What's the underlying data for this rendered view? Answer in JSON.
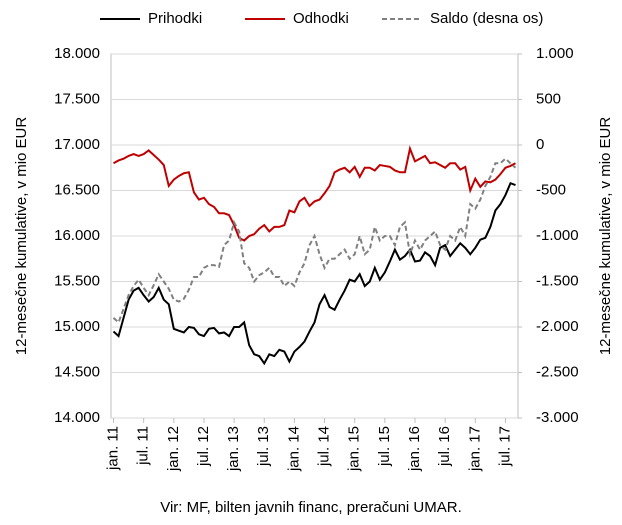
{
  "chart_data": {
    "type": "line",
    "y_label": "12-mesečne kumulative, v mio EUR",
    "y2_label": "12-mesečne kumulative, v mio EUR",
    "source": "Vir: MF, bilten javnih financ, preračuni UMAR.",
    "categories": [
      "jan. 11",
      null,
      null,
      null,
      null,
      null,
      "jul. 11",
      null,
      null,
      null,
      null,
      null,
      "jan. 12",
      null,
      null,
      null,
      null,
      null,
      "jul. 12",
      null,
      null,
      null,
      null,
      null,
      "jan. 13",
      null,
      null,
      null,
      null,
      null,
      "jul. 13",
      null,
      null,
      null,
      null,
      null,
      "jan. 14",
      null,
      null,
      null,
      null,
      null,
      "jul. 14",
      null,
      null,
      null,
      null,
      null,
      "jan. 15",
      null,
      null,
      null,
      null,
      null,
      "jul. 15",
      null,
      null,
      null,
      null,
      null,
      "jan. 16",
      null,
      null,
      null,
      null,
      null,
      "jul. 16",
      null,
      null,
      null,
      null,
      null,
      "jan. 17",
      null,
      null,
      null,
      null,
      null,
      "jul. 17",
      null,
      null
    ],
    "series": [
      {
        "name": "Prihodki",
        "color": "#000000",
        "values": [
          14950,
          14900,
          15100,
          15300,
          15400,
          15430,
          15350,
          15280,
          15330,
          15430,
          15300,
          15250,
          14980,
          14960,
          14940,
          15000,
          14990,
          14920,
          14900,
          14980,
          14990,
          14930,
          14940,
          14900,
          15000,
          15000,
          15050,
          14800,
          14700,
          14680,
          14600,
          14700,
          14680,
          14750,
          14730,
          14620,
          14730,
          14780,
          14840,
          14950,
          15050,
          15250,
          15350,
          15220,
          15190,
          15300,
          15400,
          15520,
          15500,
          15580,
          15450,
          15500,
          15650,
          15520,
          15600,
          15720,
          15850,
          15740,
          15780,
          15850,
          15720,
          15730,
          15820,
          15780,
          15680,
          15870,
          15900,
          15780,
          15850,
          15920,
          15870,
          15800,
          15870,
          15960,
          15980,
          16100,
          16280,
          16350,
          16450,
          16580,
          16560
        ]
      },
      {
        "name": "Odhodki",
        "color": "#c00000",
        "values": [
          16800,
          16830,
          16850,
          16880,
          16900,
          16880,
          16900,
          16940,
          16890,
          16840,
          16780,
          16550,
          16620,
          16660,
          16690,
          16700,
          16480,
          16400,
          16420,
          16350,
          16320,
          16250,
          16250,
          16230,
          16120,
          15980,
          15950,
          16000,
          16020,
          16080,
          16120,
          16050,
          16100,
          16100,
          16120,
          16280,
          16260,
          16380,
          16420,
          16330,
          16380,
          16400,
          16470,
          16550,
          16700,
          16730,
          16750,
          16700,
          16760,
          16650,
          16750,
          16750,
          16720,
          16780,
          16770,
          16760,
          16720,
          16700,
          16700,
          16960,
          16820,
          16850,
          16880,
          16800,
          16810,
          16780,
          16750,
          16800,
          16800,
          16730,
          16760,
          16500,
          16630,
          16540,
          16600,
          16590,
          16620,
          16680,
          16750,
          16770,
          16800
        ]
      },
      {
        "name": "Saldo (desna os)",
        "color": "#808080",
        "dashed": true,
        "axis": "y2",
        "values": [
          -1900,
          -1950,
          -1800,
          -1650,
          -1550,
          -1480,
          -1570,
          -1650,
          -1540,
          -1420,
          -1500,
          -1580,
          -1700,
          -1720,
          -1690,
          -1590,
          -1450,
          -1450,
          -1350,
          -1320,
          -1320,
          -1340,
          -1100,
          -1050,
          -850,
          -950,
          -1300,
          -1350,
          -1500,
          -1430,
          -1400,
          -1350,
          -1450,
          -1450,
          -1550,
          -1500,
          -1550,
          -1400,
          -1300,
          -1100,
          -1000,
          -1200,
          -1350,
          -1250,
          -1250,
          -1200,
          -1150,
          -1250,
          -1200,
          -1000,
          -1200,
          -1150,
          -900,
          -1050,
          -1000,
          -1000,
          -1100,
          -900,
          -850,
          -1200,
          -1050,
          -1150,
          -1050,
          -1000,
          -950,
          -1100,
          -1150,
          -1000,
          -1050,
          -900,
          -1000,
          -650,
          -700,
          -600,
          -450,
          -350,
          -200,
          -200,
          -150,
          -200,
          -250
        ]
      }
    ],
    "ylim": [
      14000,
      18000
    ],
    "yticks": [
      {
        "value": 14000,
        "label": "14.000"
      },
      {
        "value": 14500,
        "label": "14.500"
      },
      {
        "value": 15000,
        "label": "15.000"
      },
      {
        "value": 15500,
        "label": "15.500"
      },
      {
        "value": 16000,
        "label": "16.000"
      },
      {
        "value": 16500,
        "label": "16.500"
      },
      {
        "value": 17000,
        "label": "17.000"
      },
      {
        "value": 17500,
        "label": "17.500"
      },
      {
        "value": 18000,
        "label": "18.000"
      }
    ],
    "y2lim": [
      -3000,
      1000
    ],
    "y2ticks": [
      {
        "value": -3000,
        "label": "-3.000"
      },
      {
        "value": -2500,
        "label": "-2.500"
      },
      {
        "value": -2000,
        "label": "-2.000"
      },
      {
        "value": -1500,
        "label": "-1.500"
      },
      {
        "value": -1000,
        "label": "-1.000"
      },
      -500,
      0,
      500,
      {
        "value": 1000,
        "label": "1.000"
      }
    ],
    "grid": true,
    "legend": "top"
  }
}
